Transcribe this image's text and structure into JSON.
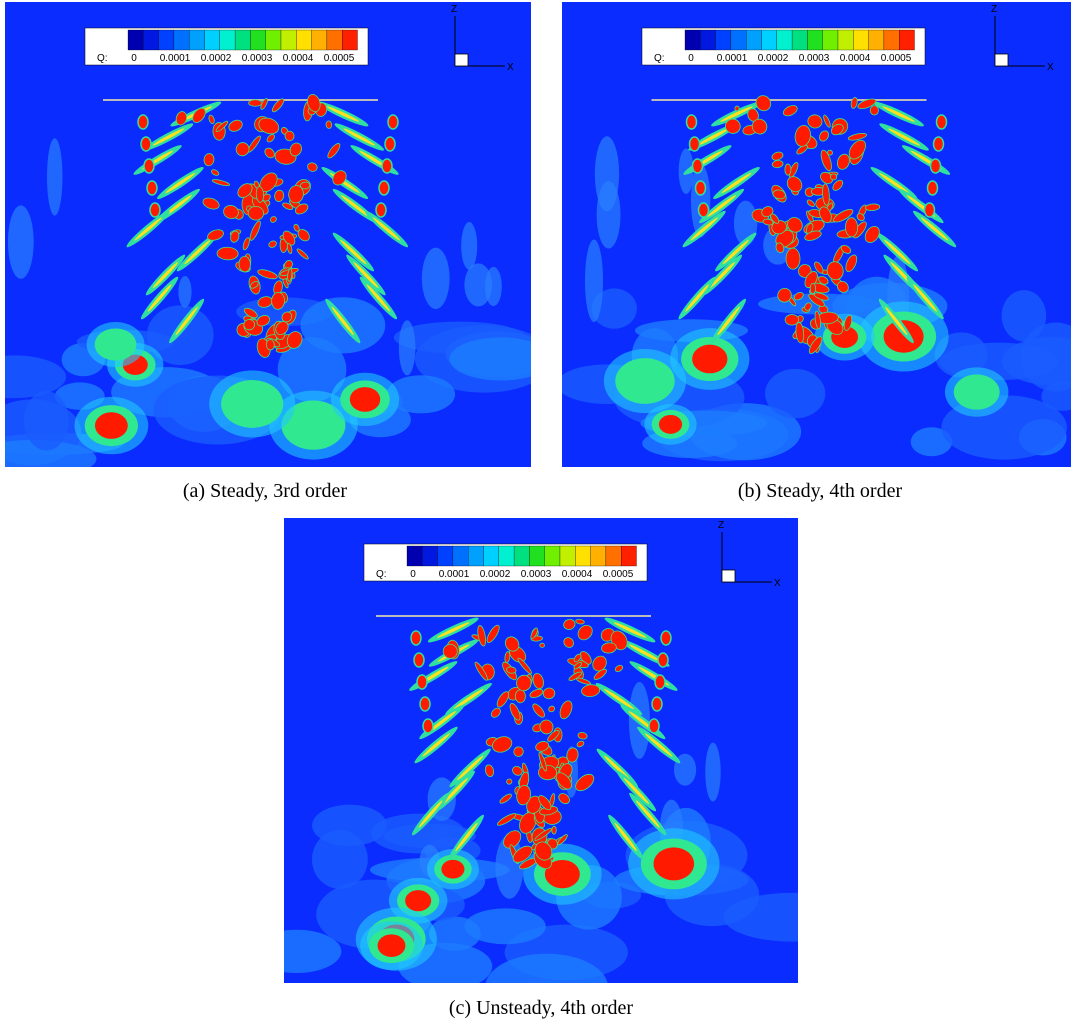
{
  "panels": [
    {
      "caption": "(a) Steady, 3rd order",
      "colorbar": {
        "label": "Q:",
        "ticks": [
          "0",
          "0.0001",
          "0.0002",
          "0.0003",
          "0.0004",
          "0.0005"
        ]
      },
      "axes": {
        "z": "Z",
        "x": "X"
      }
    },
    {
      "caption": "(b) Steady, 4th order",
      "colorbar": {
        "label": "Q:",
        "ticks": [
          "0",
          "0.0001",
          "0.0002",
          "0.0003",
          "0.0004",
          "0.0005"
        ]
      },
      "axes": {
        "z": "Z",
        "x": "X"
      }
    },
    {
      "caption": "(c) Unsteady, 4th order",
      "colorbar": {
        "label": "Q:",
        "ticks": [
          "0",
          "0.0001",
          "0.0002",
          "0.0003",
          "0.0004",
          "0.0005"
        ]
      },
      "axes": {
        "z": "Z",
        "x": "X"
      }
    }
  ]
}
